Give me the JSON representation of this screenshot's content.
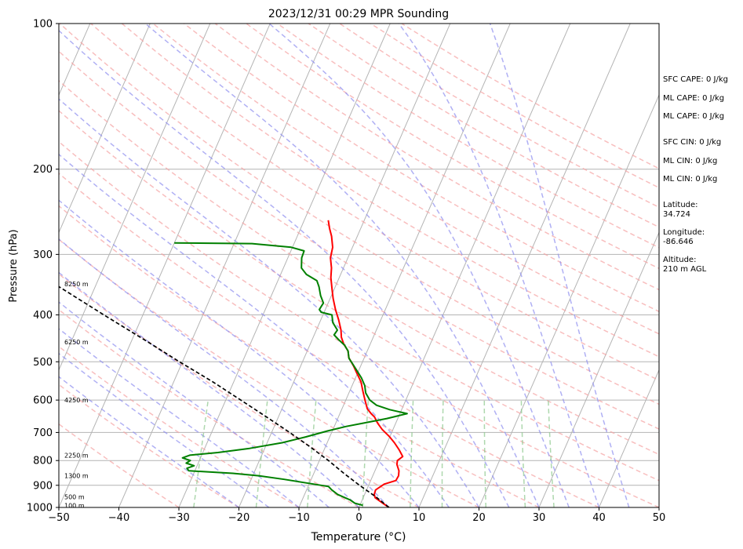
{
  "chart_data": {
    "type": "line",
    "title": "2023/12/31 00:29 MPR Sounding",
    "xlabel": "Temperature (°C)",
    "ylabel": "Pressure (hPa)",
    "xlim": [
      -50,
      50
    ],
    "ylim": [
      1000,
      100
    ],
    "y_scale": "log",
    "x_ticks": [
      "−50",
      "−40",
      "−30",
      "−20",
      "−10",
      "0",
      "10",
      "20",
      "30",
      "40",
      "50"
    ],
    "x_tick_values": [
      -50,
      -40,
      -30,
      -20,
      -10,
      0,
      10,
      20,
      30,
      40,
      50
    ],
    "y_ticks": [
      "100",
      "200",
      "300",
      "400",
      "500",
      "600",
      "700",
      "800",
      "900",
      "1000"
    ],
    "y_tick_values": [
      100,
      200,
      300,
      400,
      500,
      600,
      700,
      800,
      900,
      1000
    ],
    "grid": true,
    "skew": true,
    "series": [
      {
        "name": "",
        "color": "#ff0000",
        "points": [
          [
            5.0,
            1000
          ],
          [
            4.0,
            985
          ],
          [
            3.0,
            970
          ],
          [
            2.0,
            955
          ],
          [
            1.6,
            940
          ],
          [
            1.5,
            920
          ],
          [
            2.5,
            895
          ],
          [
            4.2,
            880
          ],
          [
            4.3,
            860
          ],
          [
            4.0,
            840
          ],
          [
            3.2,
            815
          ],
          [
            3.0,
            800
          ],
          [
            3.6,
            785
          ],
          [
            2.5,
            760
          ],
          [
            1.2,
            735
          ],
          [
            0.0,
            715
          ],
          [
            -1.8,
            690
          ],
          [
            -3.0,
            670
          ],
          [
            -4.0,
            650
          ],
          [
            -4.8,
            640
          ],
          [
            -5.8,
            625
          ],
          [
            -6.8,
            600
          ],
          [
            -7.8,
            575
          ],
          [
            -8.8,
            550
          ],
          [
            -10.3,
            525
          ],
          [
            -11.2,
            510
          ],
          [
            -12.6,
            490
          ],
          [
            -13.2,
            475
          ],
          [
            -14.4,
            460
          ],
          [
            -15.3,
            445
          ],
          [
            -15.9,
            430
          ],
          [
            -17.0,
            410
          ],
          [
            -18.3,
            390
          ],
          [
            -19.5,
            370
          ],
          [
            -20.3,
            355
          ],
          [
            -21.4,
            335
          ],
          [
            -22.0,
            320
          ],
          [
            -22.9,
            305
          ],
          [
            -23.3,
            290
          ],
          [
            -24.3,
            275
          ],
          [
            -25.2,
            265
          ],
          [
            -26.0,
            255
          ]
        ]
      },
      {
        "name": "",
        "color": "#008000",
        "points": [
          [
            0.5,
            990
          ],
          [
            -1.0,
            980
          ],
          [
            -2.0,
            965
          ],
          [
            -3.0,
            955
          ],
          [
            -4.5,
            940
          ],
          [
            -5.8,
            920
          ],
          [
            -6.6,
            905
          ],
          [
            -10.5,
            890
          ],
          [
            -14.5,
            875
          ],
          [
            -19.0,
            860
          ],
          [
            -23.5,
            850
          ],
          [
            -31.0,
            840
          ],
          [
            -31.5,
            830
          ],
          [
            -30.5,
            820
          ],
          [
            -32.0,
            810
          ],
          [
            -31.5,
            800
          ],
          [
            -33.0,
            790
          ],
          [
            -32.0,
            780
          ],
          [
            -27.5,
            770
          ],
          [
            -22.5,
            755
          ],
          [
            -17.5,
            735
          ],
          [
            -14.0,
            715
          ],
          [
            -10.8,
            695
          ],
          [
            -8.0,
            680
          ],
          [
            -5.0,
            668
          ],
          [
            -1.8,
            655
          ],
          [
            1.2,
            640
          ],
          [
            -2.0,
            628
          ],
          [
            -4.5,
            615
          ],
          [
            -6.0,
            600
          ],
          [
            -7.2,
            580
          ],
          [
            -7.9,
            560
          ],
          [
            -9.0,
            540
          ],
          [
            -10.4,
            520
          ],
          [
            -11.5,
            505
          ],
          [
            -12.5,
            492
          ],
          [
            -13.2,
            475
          ],
          [
            -14.2,
            462
          ],
          [
            -15.6,
            450
          ],
          [
            -16.7,
            440
          ],
          [
            -16.5,
            430
          ],
          [
            -17.8,
            415
          ],
          [
            -18.5,
            400
          ],
          [
            -20.5,
            395
          ],
          [
            -21.0,
            390
          ],
          [
            -20.8,
            378
          ],
          [
            -21.8,
            365
          ],
          [
            -22.7,
            350
          ],
          [
            -23.5,
            340
          ],
          [
            -25.7,
            330
          ],
          [
            -27.0,
            320
          ],
          [
            -27.7,
            305
          ],
          [
            -27.8,
            295
          ],
          [
            -30.2,
            290
          ],
          [
            -37.0,
            285
          ],
          [
            -50.0,
            284
          ]
        ]
      },
      {
        "name": "",
        "color": "#000000",
        "dashed": true,
        "points": [
          [
            5.0,
            1000
          ],
          [
            2.0,
            950
          ],
          [
            -1.5,
            900
          ],
          [
            -5.0,
            850
          ],
          [
            -8.5,
            800
          ],
          [
            -12.5,
            750
          ],
          [
            -17.0,
            700
          ],
          [
            -22.0,
            650
          ],
          [
            -27.5,
            600
          ],
          [
            -33.5,
            550
          ],
          [
            -40.5,
            500
          ],
          [
            -48.0,
            450
          ],
          [
            -56.5,
            400
          ],
          [
            -66.0,
            350
          ],
          [
            -77.0,
            300
          ],
          [
            -85.0,
            270
          ],
          [
            -90.0,
            255
          ]
        ]
      }
    ],
    "height_labels": [
      "100 m",
      "500 m",
      "1300 m",
      "2250 m",
      "4250 m",
      "6250 m",
      "8250 m"
    ],
    "height_label_pressures": [
      990,
      950,
      860,
      780,
      600,
      455,
      345
    ],
    "side_text": [
      "SFC CAPE: 0 J/kg",
      "ML CAPE: 0 J/kg",
      "ML CAPE: 0 J/kg",
      "SFC CIN: 0 J/kg",
      "ML CIN: 0 J/kg",
      "ML CIN: 0 J/kg",
      "Latitude:",
      "34.724",
      "Longitude:",
      "-86.646",
      "Altitude:",
      "210 m AGL"
    ],
    "colors": {
      "isotherm": "#b4b4b4",
      "dry_adiabat": "#f5a3a3",
      "moist_adiabat": "#8f8ff0",
      "mixing_ratio": "#8cc88c"
    }
  }
}
